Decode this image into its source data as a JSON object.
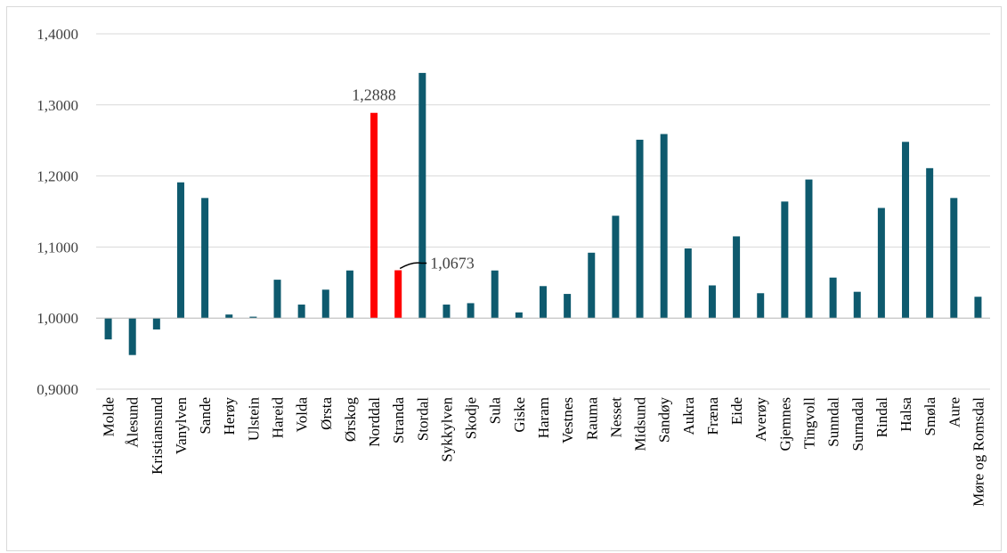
{
  "chart_data": {
    "type": "bar",
    "title": "",
    "xlabel": "",
    "ylabel": "",
    "ylim": [
      0.9,
      1.4
    ],
    "yticks": [
      "0,9000",
      "1,0000",
      "1,1000",
      "1,2000",
      "1,3000",
      "1,4000"
    ],
    "ytick_values": [
      0.9,
      1.0,
      1.1,
      1.2,
      1.3,
      1.4
    ],
    "baseline": 1.0,
    "grid": true,
    "legend": "none",
    "colors": {
      "default": "#0e5a6e",
      "highlight": "#ff0000",
      "grid": "#d9d9d9",
      "text": "#404040"
    },
    "categories": [
      "Molde",
      "Ålesund",
      "Kristiansund",
      "Vanylven",
      "Sande",
      "Herøy",
      "Ulstein",
      "Hareid",
      "Volda",
      "Ørsta",
      "Ørskog",
      "Norddal",
      "Stranda",
      "Stordal",
      "Sykkylven",
      "Skodje",
      "Sula",
      "Giske",
      "Haram",
      "Vestnes",
      "Rauma",
      "Nesset",
      "Midsund",
      "Sandøy",
      "Aukra",
      "Fræna",
      "Eide",
      "Averøy",
      "Gjemnes",
      "Tingvoll",
      "Sunndal",
      "Surnadal",
      "Rindal",
      "Halsa",
      "Smøla",
      "Aure",
      "Møre og Romsdal"
    ],
    "values": [
      0.97,
      0.948,
      0.984,
      1.191,
      1.169,
      1.005,
      1.002,
      1.054,
      1.019,
      1.04,
      1.067,
      1.2888,
      1.0673,
      1.345,
      1.019,
      1.021,
      1.067,
      1.008,
      1.045,
      1.034,
      1.092,
      1.144,
      1.251,
      1.259,
      1.098,
      1.046,
      1.115,
      1.035,
      1.164,
      1.195,
      1.057,
      1.037,
      1.155,
      1.248,
      1.211,
      1.169,
      1.03
    ],
    "highlight": [
      "Norddal",
      "Stranda"
    ],
    "data_labels": [
      {
        "category": "Norddal",
        "text": "1,2888"
      },
      {
        "category": "Stranda",
        "text": "1,0673"
      }
    ]
  }
}
